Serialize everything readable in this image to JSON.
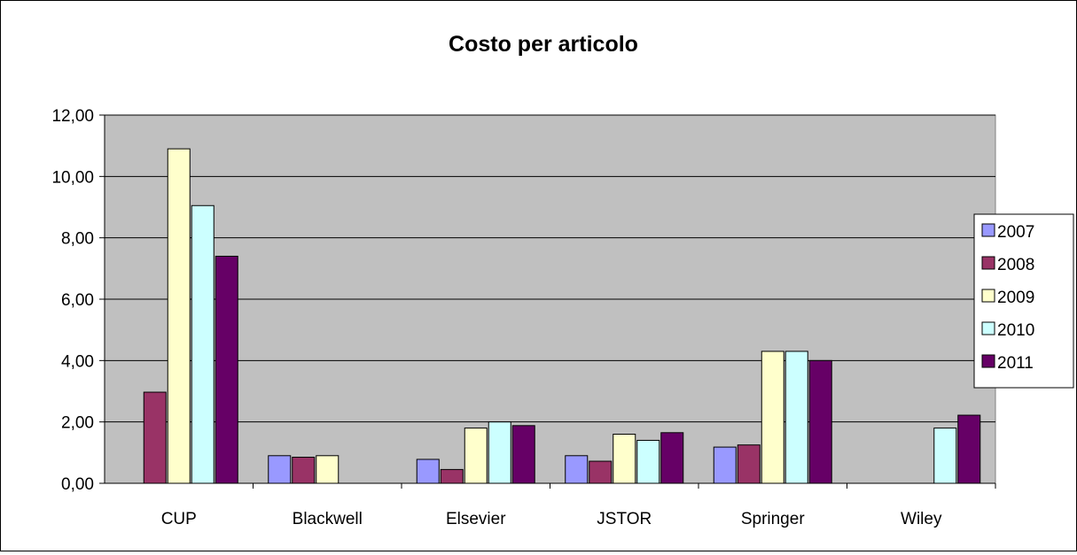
{
  "chart_data": {
    "type": "bar",
    "title": "Costo per articolo",
    "xlabel": "",
    "ylabel": "",
    "categories": [
      "CUP",
      "Blackwell",
      "Elsevier",
      "JSTOR",
      "Springer",
      "Wiley"
    ],
    "series": [
      {
        "name": "2007",
        "color": "#9999FF",
        "values": [
          0.0,
          0.9,
          0.78,
          0.9,
          1.18,
          0.0
        ]
      },
      {
        "name": "2008",
        "color": "#993366",
        "values": [
          2.97,
          0.85,
          0.45,
          0.72,
          1.25,
          0.0
        ]
      },
      {
        "name": "2009",
        "color": "#FFFFCC",
        "values": [
          10.9,
          0.9,
          1.8,
          1.6,
          4.3,
          0.0
        ]
      },
      {
        "name": "2010",
        "color": "#CCFFFF",
        "values": [
          9.05,
          0.0,
          2.0,
          1.4,
          4.3,
          1.8
        ]
      },
      {
        "name": "2011",
        "color": "#660066",
        "values": [
          7.4,
          0.0,
          1.88,
          1.65,
          4.0,
          2.22
        ]
      }
    ],
    "yticks": [
      "0,00",
      "2,00",
      "4,00",
      "6,00",
      "8,00",
      "10,00",
      "12,00"
    ],
    "ylim": [
      0,
      12
    ],
    "grid": true,
    "plot_background": "#C0C0C0",
    "legend": "right"
  }
}
